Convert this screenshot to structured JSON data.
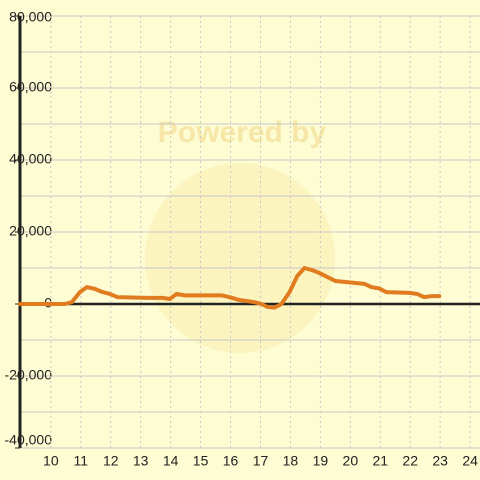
{
  "chart_data": {
    "type": "line",
    "watermark": "Powered by",
    "x": [
      8.97,
      10.47,
      10.7,
      10.97,
      11.2,
      11.47,
      11.73,
      11.97,
      12.23,
      12.73,
      13.23,
      13.73,
      13.97,
      14.2,
      14.47,
      14.97,
      15.7,
      15.97,
      16.3,
      16.8,
      17.03,
      17.23,
      17.47,
      17.7,
      17.97,
      18.23,
      18.47,
      18.73,
      18.97,
      19.23,
      19.5,
      19.97,
      20.47,
      20.7,
      20.97,
      21.2,
      21.97,
      22.23,
      22.47,
      22.73,
      22.97
    ],
    "series": [
      {
        "color": "#e07b20",
        "values": [
          0,
          0,
          500,
          3300,
          4700,
          4200,
          3300,
          2800,
          1900,
          1800,
          1700,
          1700,
          1400,
          2800,
          2400,
          2400,
          2400,
          1900,
          1100,
          500,
          0,
          -800,
          -1000,
          0,
          3300,
          7800,
          10000,
          9400,
          8600,
          7500,
          6400,
          6000,
          5600,
          4700,
          4300,
          3300,
          3100,
          2800,
          1900,
          2200,
          2200
        ]
      }
    ],
    "xlim": [
      8.97,
      24.33
    ],
    "xticks": [
      10,
      11,
      12,
      13,
      14,
      15,
      16,
      17,
      18,
      19,
      20,
      21,
      22,
      23,
      24
    ],
    "ylim": [
      -40000,
      80000
    ],
    "yticks": [
      {
        "value": 80000,
        "label": "80,000"
      },
      {
        "value": 60000,
        "label": "60,000"
      },
      {
        "value": 40000,
        "label": "40,000"
      },
      {
        "value": 20000,
        "label": "20,000"
      },
      0,
      {
        "value": -20000,
        "label": "-20,000"
      },
      {
        "value": -40000,
        "label": "-40,000"
      }
    ],
    "y_minor_ticks": [
      70000,
      50000,
      30000,
      10000,
      -10000,
      -30000
    ],
    "grid": true
  }
}
